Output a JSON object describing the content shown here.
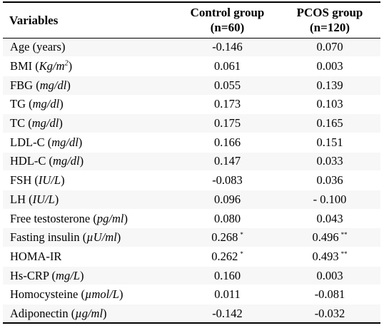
{
  "header": {
    "col1": "Variables",
    "col2_line1": "Control group",
    "col2_line2": "(n=60)",
    "col3_line1": "PCOS group",
    "col3_line2": "(n=120)"
  },
  "rows": [
    {
      "name": "Age",
      "unit": "years",
      "unit_italic": false,
      "control": "-0.146",
      "control_sig": "",
      "pcos": "0.070",
      "pcos_sig": ""
    },
    {
      "name": "BMI",
      "unit": "Kg/m",
      "unit_sup": "2",
      "unit_italic": true,
      "control": "0.061",
      "control_sig": "",
      "pcos": "0.003",
      "pcos_sig": ""
    },
    {
      "name": "FBG",
      "unit": "mg/dl",
      "unit_italic": true,
      "control": "0.055",
      "control_sig": "",
      "pcos": "0.139",
      "pcos_sig": ""
    },
    {
      "name": "TG",
      "unit": "mg/dl",
      "unit_italic": true,
      "control": "0.173",
      "control_sig": "",
      "pcos": "0.103",
      "pcos_sig": ""
    },
    {
      "name": "TC",
      "unit": "mg/dl",
      "unit_italic": true,
      "control": "0.175",
      "control_sig": "",
      "pcos": "0.165",
      "pcos_sig": ""
    },
    {
      "name": "LDL-C",
      "unit": "mg/dl",
      "unit_italic": true,
      "control": "0.166",
      "control_sig": "",
      "pcos": "0.151",
      "pcos_sig": ""
    },
    {
      "name": "HDL-C",
      "unit": "mg/dl",
      "unit_italic": true,
      "control": "0.147",
      "control_sig": "",
      "pcos": "0.033",
      "pcos_sig": ""
    },
    {
      "name": "FSH",
      "unit": "IU/L",
      "unit_italic": true,
      "control": "-0.083",
      "control_sig": "",
      "pcos": "0.036",
      "pcos_sig": ""
    },
    {
      "name": "LH",
      "unit": "IU/L",
      "unit_italic": true,
      "control": "0.096",
      "control_sig": "",
      "pcos": "- 0.100",
      "pcos_sig": ""
    },
    {
      "name": "Free testosterone",
      "unit": "pg/ml",
      "unit_italic": true,
      "control": "0.080",
      "control_sig": "",
      "pcos": "0.043",
      "pcos_sig": ""
    },
    {
      "name": "Fasting insulin",
      "unit": "µU/ml",
      "unit_italic": true,
      "control": "0.268",
      "control_sig": "*",
      "pcos": "0.496",
      "pcos_sig": "**"
    },
    {
      "name": "HOMA-IR",
      "unit": "",
      "unit_italic": false,
      "control": "0.262",
      "control_sig": "*",
      "pcos": "0.493",
      "pcos_sig": "**"
    },
    {
      "name": "Hs-CRP",
      "unit": "mg/L",
      "unit_italic": true,
      "control": "0.160",
      "control_sig": "",
      "pcos": "0.003",
      "pcos_sig": ""
    },
    {
      "name": "Homocysteine",
      "unit": "µmol/L",
      "unit_italic": true,
      "control": "0.011",
      "control_sig": "",
      "pcos": "-0.081",
      "pcos_sig": ""
    },
    {
      "name": "Adiponectin",
      "unit": "µg/ml",
      "unit_italic": true,
      "control": "-0.142",
      "control_sig": "",
      "pcos": "-0.032",
      "pcos_sig": ""
    }
  ]
}
